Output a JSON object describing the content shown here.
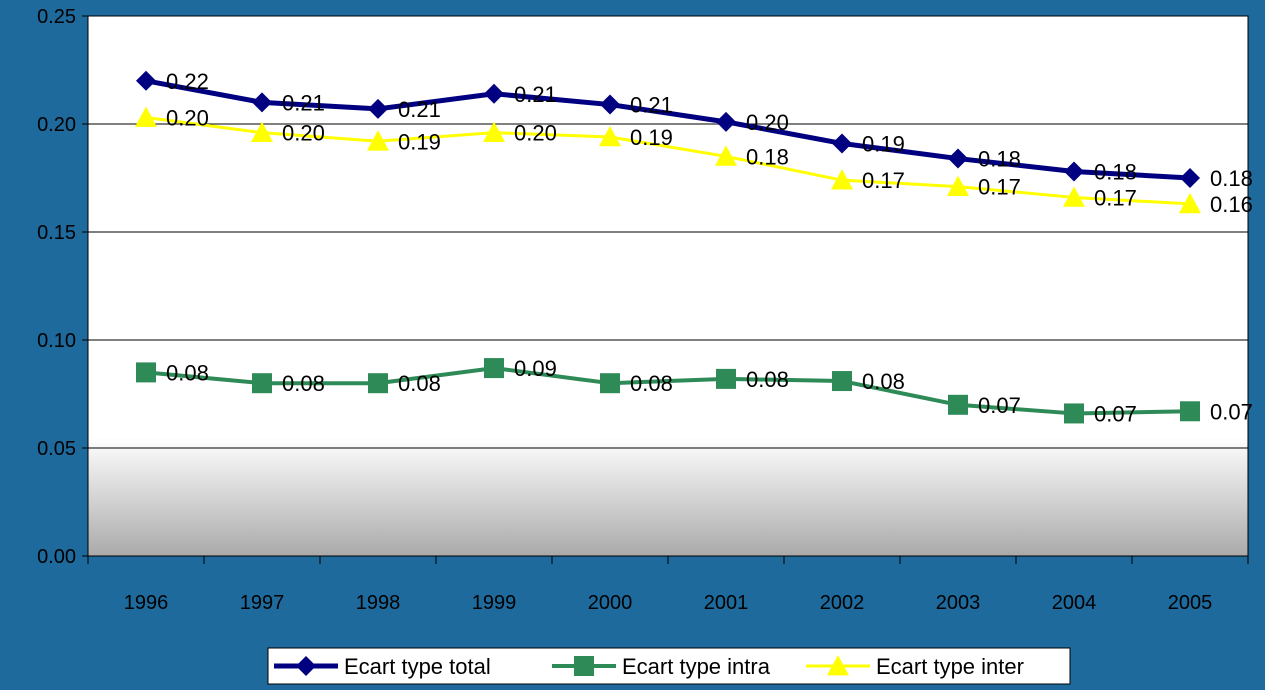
{
  "chart_data": {
    "type": "line",
    "categories": [
      "1996",
      "1997",
      "1998",
      "1999",
      "2000",
      "2001",
      "2002",
      "2003",
      "2004",
      "2005"
    ],
    "ylim": [
      0,
      0.25
    ],
    "yticks": [
      "0.00",
      "0.05",
      "0.10",
      "0.15",
      "0.20",
      "0.25"
    ],
    "grid": true,
    "legend_position": "bottom",
    "series": [
      {
        "name": "Ecart type total",
        "color": "#000080",
        "marker": "diamond",
        "values": [
          0.22,
          0.21,
          0.207,
          0.214,
          0.209,
          0.201,
          0.191,
          0.184,
          0.178,
          0.175
        ],
        "labels": [
          "0.22",
          "0.21",
          "0.21",
          "0.21",
          "0.21",
          "0.20",
          "0.19",
          "0.18",
          "0.18",
          "0.18"
        ]
      },
      {
        "name": "Ecart type intra",
        "color": "#2e8b57",
        "marker": "square",
        "values": [
          0.085,
          0.08,
          0.08,
          0.087,
          0.08,
          0.082,
          0.081,
          0.07,
          0.066,
          0.067
        ],
        "labels": [
          "0.08",
          "0.08",
          "0.08",
          "0.09",
          "0.08",
          "0.08",
          "0.08",
          "0.07",
          "0.07",
          "0.07"
        ]
      },
      {
        "name": "Ecart type inter",
        "color": "#ffff00",
        "marker": "triangle",
        "values": [
          0.203,
          0.196,
          0.192,
          0.196,
          0.194,
          0.185,
          0.174,
          0.171,
          0.166,
          0.163
        ],
        "labels": [
          "0.20",
          "0.20",
          "0.19",
          "0.20",
          "0.19",
          "0.18",
          "0.17",
          "0.17",
          "0.17",
          "0.16"
        ]
      }
    ]
  }
}
